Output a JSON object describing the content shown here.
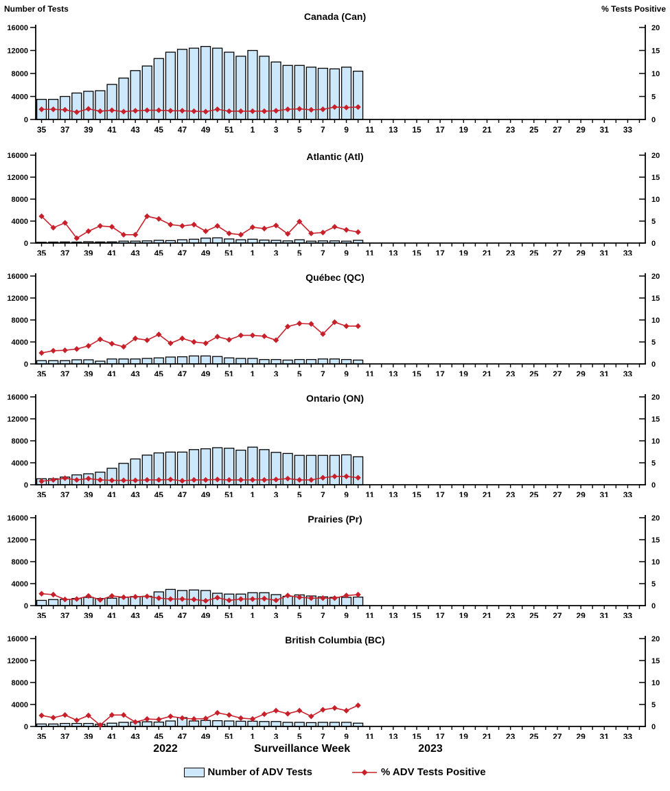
{
  "header": {
    "left_axis_title": "Number of Tests",
    "right_axis_title": "% Tests Positive"
  },
  "footer": {
    "year_left": "2022",
    "caption": "Surveillance Week",
    "year_right": "2023"
  },
  "legend": {
    "bars_label": "Number of ADV Tests",
    "line_label": "% ADV Tests Positive"
  },
  "chart_data": {
    "type": "combo-bar-line",
    "description": "Six stacked weekly surveillance panels; bars = number of ADV tests (left axis), red diamond line = % ADV tests positive (right axis)",
    "total_week_slots": 52,
    "weeks": [
      35,
      36,
      37,
      38,
      39,
      40,
      41,
      42,
      43,
      44,
      45,
      46,
      47,
      48,
      49,
      50,
      51,
      52,
      1,
      2,
      3,
      4,
      5,
      6,
      7,
      8,
      9,
      10
    ],
    "x_tick_labels": [
      35,
      37,
      39,
      41,
      43,
      45,
      47,
      49,
      51,
      1,
      3,
      5,
      7,
      9,
      11,
      13,
      15,
      17,
      19,
      21,
      23,
      25,
      27,
      29,
      31,
      33
    ],
    "left_axis": {
      "title": "Number of Tests",
      "ticks": [
        0,
        4000,
        8000,
        12000,
        16000
      ],
      "max": 16000
    },
    "right_axis": {
      "title": "% Tests Positive",
      "ticks": [
        0,
        5,
        10,
        15,
        20
      ],
      "max": 20
    },
    "colors": {
      "bar_fill": "#CDE8FA",
      "bar_border": "#000000",
      "line": "#C8202A"
    },
    "panels": [
      {
        "title": "Canada (Can)",
        "tests": [
          3500,
          3500,
          4000,
          4600,
          4900,
          5000,
          6100,
          7200,
          8500,
          9300,
          10600,
          11700,
          12200,
          12400,
          12700,
          12400,
          11700,
          11000,
          12000,
          11000,
          10000,
          9400,
          9400,
          9100,
          8900,
          8800,
          9100,
          8400
        ],
        "pct_positive": [
          2.2,
          2.2,
          2.1,
          1.6,
          2.3,
          1.8,
          2.0,
          1.7,
          1.9,
          2.0,
          2.0,
          1.9,
          1.9,
          1.8,
          1.7,
          2.2,
          1.8,
          1.8,
          1.8,
          1.8,
          1.9,
          2.2,
          2.3,
          2.1,
          2.2,
          2.7,
          2.6,
          2.7
        ]
      },
      {
        "title": "Atlantic (Atl)",
        "tests": [
          150,
          180,
          200,
          180,
          250,
          200,
          220,
          350,
          350,
          400,
          500,
          450,
          600,
          700,
          900,
          950,
          750,
          600,
          700,
          550,
          500,
          400,
          600,
          350,
          400,
          400,
          350,
          500
        ],
        "pct_positive": [
          6.1,
          3.5,
          4.6,
          1.1,
          2.7,
          3.9,
          3.7,
          1.9,
          1.9,
          6.1,
          5.5,
          4.2,
          3.9,
          4.2,
          2.7,
          3.9,
          2.2,
          1.9,
          3.6,
          3.3,
          4.0,
          2.1,
          4.9,
          2.2,
          2.4,
          3.7,
          3.0,
          2.5
        ]
      },
      {
        "title": "Québec (QC)",
        "tests": [
          600,
          600,
          600,
          750,
          750,
          500,
          900,
          900,
          900,
          1000,
          1100,
          1250,
          1300,
          1450,
          1450,
          1350,
          1100,
          1000,
          1000,
          800,
          800,
          700,
          800,
          800,
          900,
          900,
          800,
          700
        ],
        "pct_positive": [
          2.5,
          3.0,
          3.1,
          3.4,
          4.1,
          5.6,
          4.6,
          3.9,
          5.8,
          5.4,
          6.7,
          4.7,
          5.8,
          5.0,
          4.7,
          6.2,
          5.5,
          6.5,
          6.5,
          6.3,
          5.4,
          8.5,
          9.2,
          9.1,
          6.8,
          9.5,
          8.6,
          8.6
        ]
      },
      {
        "title": "Ontario (ON)",
        "tests": [
          1100,
          1100,
          1400,
          1800,
          2000,
          2300,
          3000,
          3900,
          4700,
          5400,
          5800,
          5950,
          5950,
          6400,
          6550,
          6750,
          6650,
          6300,
          6850,
          6400,
          5900,
          5700,
          5350,
          5350,
          5350,
          5350,
          5450,
          5100
        ],
        "pct_positive": [
          0.8,
          1.1,
          1.5,
          1.1,
          1.4,
          1.1,
          1.0,
          1.0,
          1.0,
          1.1,
          1.1,
          1.2,
          0.9,
          1.1,
          1.1,
          1.2,
          1.1,
          1.1,
          1.1,
          1.1,
          1.2,
          1.4,
          1.1,
          1.1,
          1.6,
          1.9,
          1.9,
          1.6
        ]
      },
      {
        "title": "Prairies (Pr)",
        "tests": [
          950,
          1100,
          1150,
          1300,
          1500,
          1300,
          1350,
          1500,
          1650,
          1700,
          2500,
          2950,
          2750,
          2850,
          2750,
          2250,
          2100,
          2100,
          2350,
          2350,
          2000,
          1700,
          1950,
          1750,
          1600,
          1500,
          1500,
          1550
        ],
        "pct_positive": [
          2.7,
          2.5,
          1.4,
          1.5,
          2.2,
          1.3,
          2.2,
          1.9,
          2.0,
          2.1,
          1.7,
          1.5,
          1.5,
          1.4,
          1.1,
          1.8,
          1.2,
          1.5,
          1.5,
          1.6,
          1.2,
          2.3,
          1.9,
          1.7,
          1.7,
          1.7,
          2.3,
          2.5
        ]
      },
      {
        "title": "British Columbia (BC)",
        "tests": [
          450,
          450,
          550,
          550,
          550,
          400,
          600,
          750,
          800,
          850,
          800,
          1000,
          1600,
          1000,
          1100,
          1050,
          1000,
          950,
          950,
          900,
          900,
          750,
          750,
          700,
          750,
          750,
          750,
          600
        ],
        "pct_positive": [
          2.5,
          2.0,
          2.6,
          1.4,
          2.5,
          0.3,
          2.6,
          2.6,
          1.0,
          1.7,
          1.6,
          2.3,
          1.9,
          1.7,
          1.8,
          3.1,
          2.6,
          1.9,
          1.7,
          2.8,
          3.6,
          2.9,
          3.6,
          2.3,
          3.8,
          4.2,
          3.6,
          4.8
        ]
      }
    ]
  }
}
